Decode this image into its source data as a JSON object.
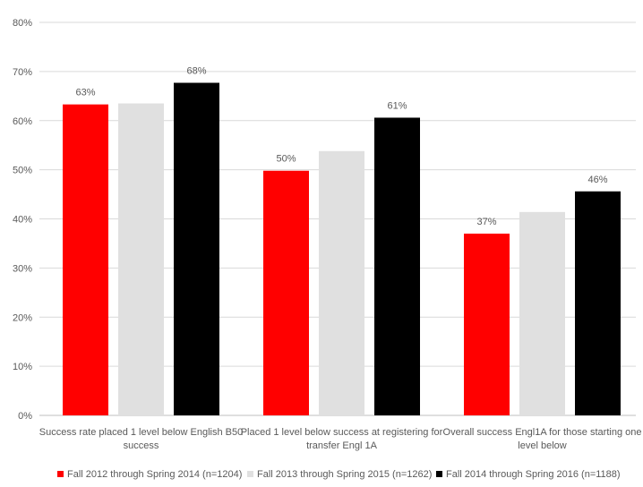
{
  "chart_data": {
    "type": "bar",
    "title": "",
    "xlabel": "",
    "ylabel": "",
    "ylim": [
      0,
      80
    ],
    "y_ticks": [
      "0%",
      "10%",
      "20%",
      "30%",
      "40%",
      "50%",
      "60%",
      "70%",
      "80%"
    ],
    "y_tick_values": [
      0,
      10,
      20,
      30,
      40,
      50,
      60,
      70,
      80
    ],
    "grid": true,
    "legend_position": "bottom",
    "categories": [
      [
        "Success rate placed 1 level below English  B50",
        "success"
      ],
      [
        "Placed 1 level below success at registering for",
        "transfer Engl 1A"
      ],
      [
        "Overall success Engl1A for those starting one",
        "level below"
      ]
    ],
    "series": [
      {
        "name": "Fall 2012 through Spring 2014 (n=1204)",
        "color": "#ff0000",
        "values": [
          63.3,
          49.8,
          37.0
        ],
        "labels": [
          "63%",
          "50%",
          "37%"
        ]
      },
      {
        "name": "Fall 2013 through Spring 2015 (n=1262)",
        "color": "#e0e0e0",
        "values": [
          63.5,
          53.8,
          41.4
        ],
        "labels": [
          "",
          "",
          ""
        ]
      },
      {
        "name": "Fall 2014 through Spring 2016 (n=1188)",
        "color": "#000000",
        "values": [
          67.7,
          60.6,
          45.6
        ],
        "labels": [
          "68%",
          "61%",
          "46%"
        ]
      }
    ]
  }
}
